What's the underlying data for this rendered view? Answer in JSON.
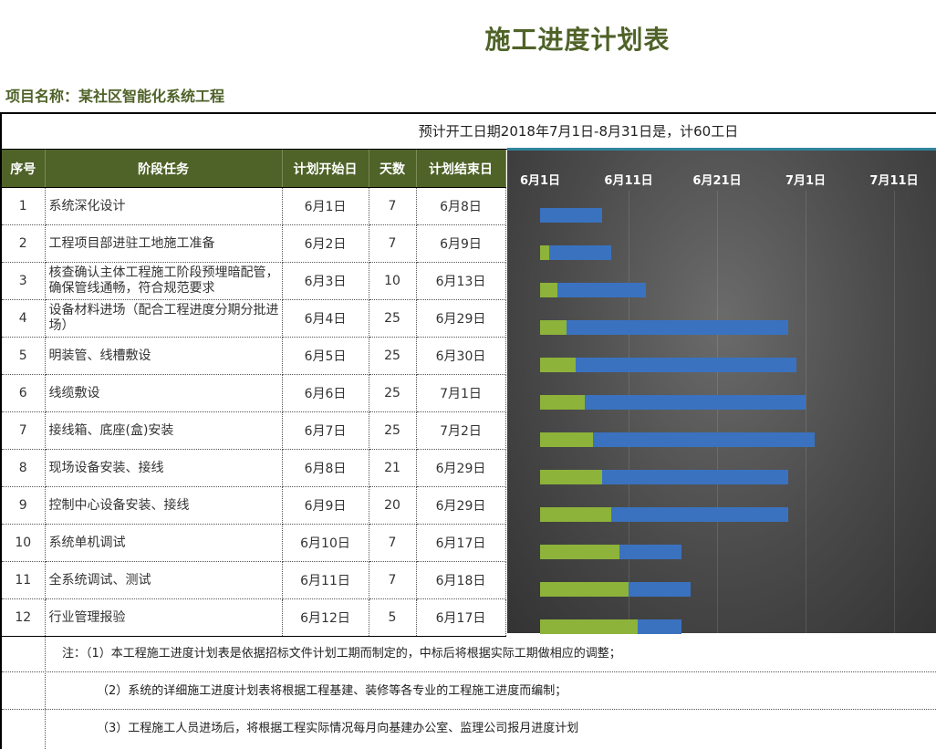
{
  "title": "施工进度计划表",
  "project": "项目名称：某社区智能化系统工程",
  "banner": "预计开工日期2018年7月1日-8月31日是，计60工日",
  "headers": [
    "序号",
    "阶段任务",
    "计划开始日",
    "天数",
    "计划结束日"
  ],
  "rows": [
    {
      "no": "1",
      "task": "系统深化设计",
      "start": "6月1日",
      "days": "7",
      "end": "6月8日"
    },
    {
      "no": "2",
      "task": "工程项目部进驻工地施工准备",
      "start": "6月2日",
      "days": "7",
      "end": "6月9日"
    },
    {
      "no": "3",
      "task": "核查确认主体工程施工阶段预埋暗配管，确保管线通畅，符合规范要求",
      "start": "6月3日",
      "days": "10",
      "end": "6月13日"
    },
    {
      "no": "4",
      "task": "设备材料进场（配合工程进度分期分批进场）",
      "start": "6月4日",
      "days": "25",
      "end": "6月29日"
    },
    {
      "no": "5",
      "task": "明装管、线槽敷设",
      "start": "6月5日",
      "days": "25",
      "end": "6月30日"
    },
    {
      "no": "6",
      "task": "线缆敷设",
      "start": "6月6日",
      "days": "25",
      "end": "7月1日"
    },
    {
      "no": "7",
      "task": "接线箱、底座(盒)安装",
      "start": "6月7日",
      "days": "25",
      "end": "7月2日"
    },
    {
      "no": "8",
      "task": "现场设备安装、接线",
      "start": "6月8日",
      "days": "21",
      "end": "6月29日"
    },
    {
      "no": "9",
      "task": "控制中心设备安装、接线",
      "start": "6月9日",
      "days": "20",
      "end": "6月29日"
    },
    {
      "no": "10",
      "task": "系统单机调试",
      "start": "6月10日",
      "days": "7",
      "end": "6月17日"
    },
    {
      "no": "11",
      "task": "全系统调试、测试",
      "start": "6月11日",
      "days": "7",
      "end": "6月18日"
    },
    {
      "no": "12",
      "task": "行业管理报验",
      "start": "6月12日",
      "days": "5",
      "end": "6月17日"
    }
  ],
  "gantt": {
    "axis_labels": [
      "6月1日",
      "6月11日",
      "6月21日",
      "7月1日",
      "7月11日"
    ],
    "axis_day_offsets": [
      0,
      10,
      20,
      30,
      40
    ],
    "bars": [
      {
        "offset": 0,
        "duration": 7
      },
      {
        "offset": 1,
        "duration": 7
      },
      {
        "offset": 2,
        "duration": 10
      },
      {
        "offset": 3,
        "duration": 25
      },
      {
        "offset": 4,
        "duration": 25
      },
      {
        "offset": 5,
        "duration": 25
      },
      {
        "offset": 6,
        "duration": 25
      },
      {
        "offset": 7,
        "duration": 21
      },
      {
        "offset": 8,
        "duration": 20
      },
      {
        "offset": 9,
        "duration": 7
      },
      {
        "offset": 10,
        "duration": 7
      },
      {
        "offset": 11,
        "duration": 5
      }
    ],
    "colors": {
      "offset": "#8db33a",
      "duration": "#3a72c0"
    }
  },
  "notes": [
    "注：（1）本工程施工进度计划表是依据招标文件计划工期而制定的，中标后将根据实际工期做相应的调整；",
    "（2）系统的详细施工进度计划表将根据工程基建、装修等各专业的工程施工进度而编制；",
    "（3）工程施工人员进场后，将根据工程实际情况每月向基建办公室、监理公司报月进度计划"
  ]
}
